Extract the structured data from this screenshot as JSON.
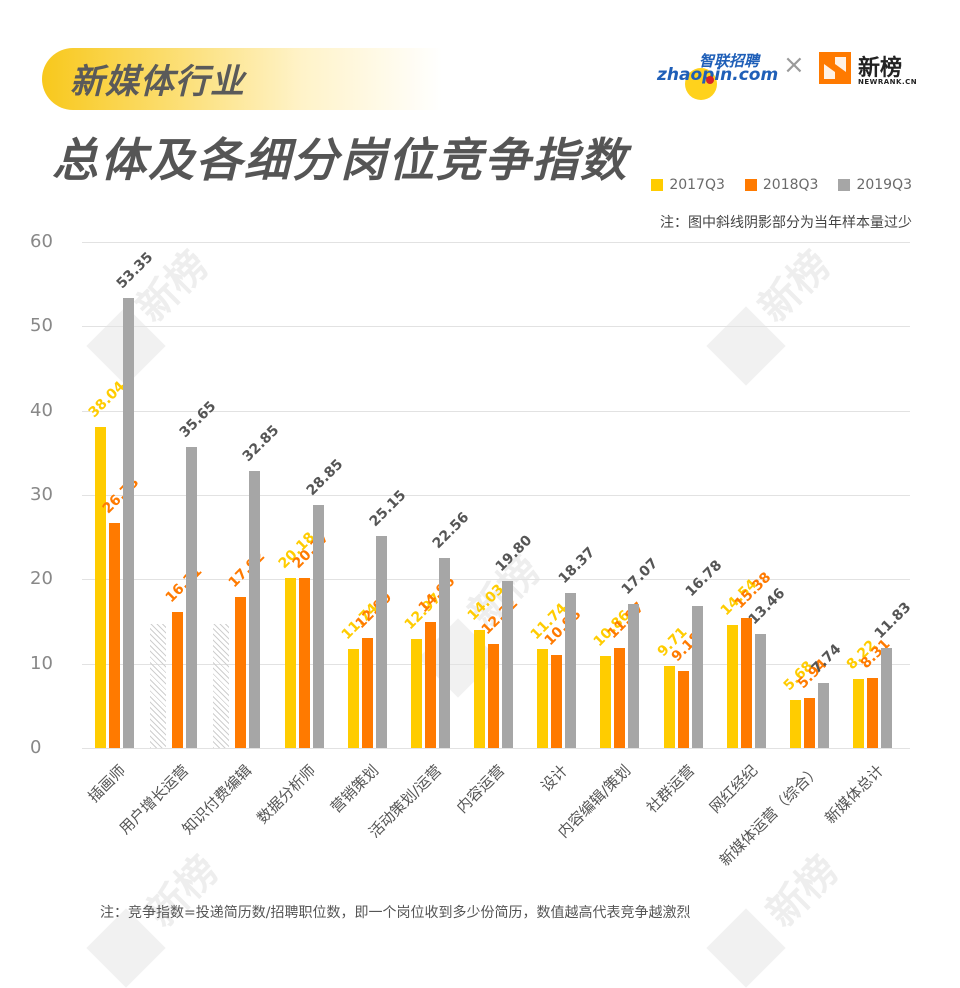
{
  "header": {
    "tag": "新媒体行业",
    "title": "总体及各细分岗位竞争指数",
    "logos": {
      "zhaopin_cn": "智联招聘",
      "zhaopin_en": "zhaopin.com",
      "times": "×",
      "newrank_cn": "新榜",
      "newrank_en": "NEWRANK.CN"
    }
  },
  "legend": [
    {
      "label": "2017Q3",
      "color": "#FFCC00"
    },
    {
      "label": "2018Q3",
      "color": "#FF7A00"
    },
    {
      "label": "2019Q3",
      "color": "#A6A6A6"
    }
  ],
  "note_top": "注：图中斜线阴影部分为当年样本量过少",
  "note_bottom": "注：竞争指数=投递简历数/招聘职位数，即一个岗位收到多少份简历，数值越高代表竞争越激烈",
  "watermark": {
    "cn": "新榜",
    "en": "NEWRANK.CN"
  },
  "y_ticks": [
    "0",
    "10",
    "20",
    "30",
    "40",
    "50",
    "60"
  ],
  "chart_data": {
    "type": "bar",
    "title": "总体及各细分岗位竞争指数",
    "xlabel": "",
    "ylabel": "",
    "ylim": [
      0,
      60
    ],
    "grid": true,
    "legend_position": "top-right",
    "categories": [
      "插画师",
      "用户增长运营",
      "知识付费编辑",
      "数据分析师",
      "营销策划",
      "活动策划/运营",
      "内容运营",
      "设计",
      "内容编辑/策划",
      "社群运营",
      "网红经纪",
      "新媒体运营（综合）",
      "新媒体总计"
    ],
    "series": [
      {
        "name": "2017Q3",
        "color": "#FFCC00",
        "values": [
          38.04,
          null,
          null,
          20.18,
          11.74,
          12.97,
          14.03,
          11.74,
          10.86,
          9.71,
          14.54,
          5.68,
          8.22
        ]
      },
      {
        "name": "2018Q3",
        "color": "#FF7A00",
        "values": [
          26.73,
          16.11,
          17.92,
          20.17,
          12.99,
          14.96,
          12.32,
          10.98,
          11.87,
          9.18,
          15.38,
          5.94,
          8.31
        ]
      },
      {
        "name": "2019Q3",
        "color": "#A6A6A6",
        "values": [
          53.35,
          35.65,
          32.85,
          28.85,
          25.15,
          22.56,
          19.8,
          18.37,
          17.07,
          16.78,
          13.46,
          7.74,
          11.83
        ]
      }
    ],
    "value_labels": {
      "2017Q3": [
        "38.04",
        "",
        "",
        "20.18",
        "11.74",
        "12.97",
        "14.03",
        "11.74",
        "10.86",
        "9.71",
        "14.54",
        "5.68",
        "8.22"
      ],
      "2018Q3": [
        "26.73",
        "16.11",
        "17.92",
        "20.17",
        "12.99",
        "14.96",
        "12.32",
        "10.98",
        "11.87",
        "9.18",
        "15.38",
        "5.94",
        "8.31"
      ],
      "2019Q3": [
        "53.35",
        "35.65",
        "32.85",
        "28.85",
        "25.15",
        "22.56",
        "19.80",
        "18.37",
        "17.07",
        "16.78",
        "13.46",
        "7.74",
        "11.83"
      ]
    },
    "annotations": [
      "2017Q3 用户增长运营、知识付费编辑 为斜线阴影（样本量过少）"
    ],
    "hatched": [
      {
        "series": "2017Q3",
        "category_index": 1
      },
      {
        "series": "2017Q3",
        "category_index": 2
      }
    ]
  }
}
